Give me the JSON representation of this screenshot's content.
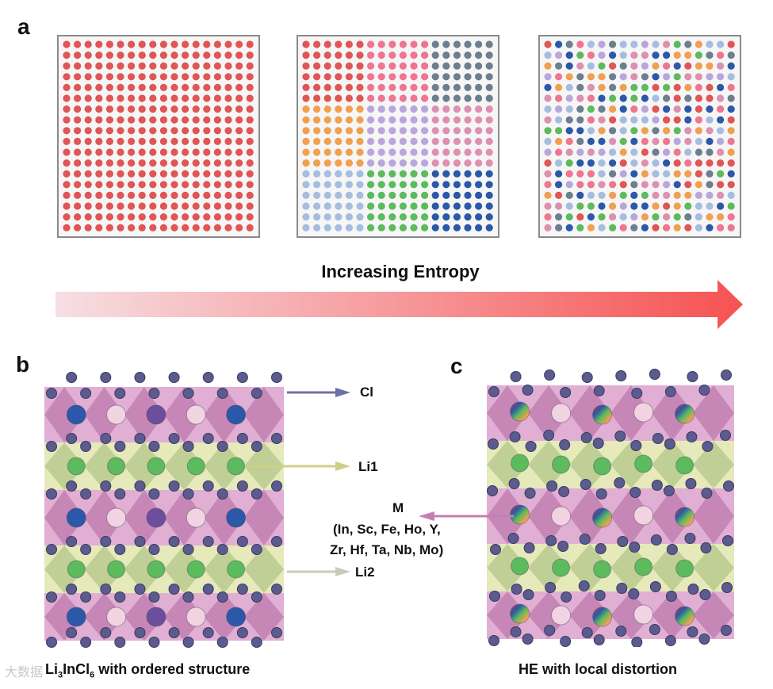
{
  "panels": {
    "a": {
      "letter": "a",
      "arrow_label": "Increasing Entropy",
      "grids": [
        {
          "name": "single",
          "pattern": "uniform"
        },
        {
          "name": "blocks",
          "pattern": "blocks"
        },
        {
          "name": "random",
          "pattern": "random"
        }
      ]
    },
    "b": {
      "letter": "b",
      "caption_prefix": "Li",
      "caption_sub1": "3",
      "caption_mid": "InCl",
      "caption_sub2": "6",
      "caption_suffix": " with  ordered structure"
    },
    "c": {
      "letter": "c",
      "caption": "HE with local distortion"
    }
  },
  "labels": {
    "cl": "Cl",
    "li1": "Li1",
    "li2": "Li2",
    "m_title": "M",
    "m_elements_line1": "(In, Sc, Fe, Ho, Y,",
    "m_elements_line2": "Zr, Hf,  Ta, Nb, Mo)"
  },
  "colors": {
    "red": "#e05555",
    "pink": "#ef7590",
    "gray": "#6d7e8f",
    "orange": "#f0a050",
    "lavender": "#b8a6dc",
    "rose": "#dd90b0",
    "lightblue": "#a5bde0",
    "green": "#5cbb5c",
    "blue": "#2b58a8",
    "arrow_start": "#f6dfe3",
    "arrow_end": "#f65252",
    "cl_arrow": "#6f6fa8",
    "li1_arrow": "#d0cf88",
    "li2_arrow": "#c5cdb8",
    "m_arrow": "#c47fb2"
  },
  "watermark": "大数据"
}
